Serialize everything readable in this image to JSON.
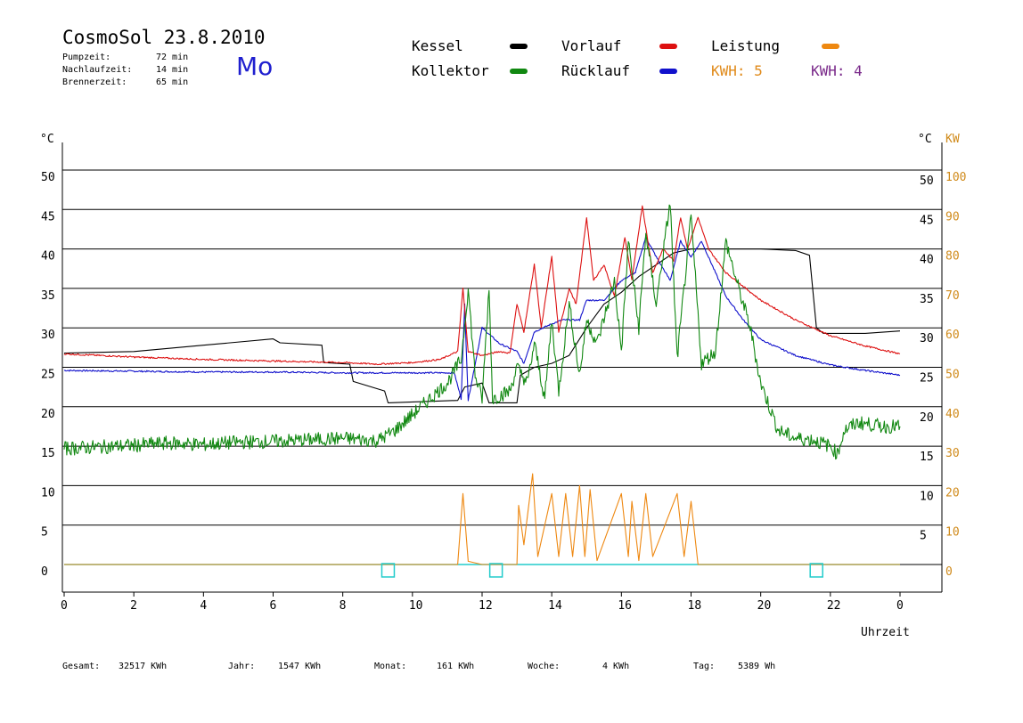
{
  "header": {
    "title": "CosmoSol 23.8.2010",
    "weekday": "Mo",
    "pumpzeit_label": "Pumpzeit:",
    "pumpzeit_value": "72 min",
    "nachlaufzeit_label": "Nachlaufzeit:",
    "nachlaufzeit_value": "14 min",
    "brennerzeit_label": "Brennerzeit:",
    "brennerzeit_value": "65 min"
  },
  "legend": {
    "kessel": "Kessel",
    "kollektor": "Kollektor",
    "vorlauf": "Vorlauf",
    "ruecklauf": "Rücklauf",
    "leistung": "Leistung",
    "kwh1": "KWH: 5",
    "kwh2": "KWH: 4"
  },
  "colors": {
    "kessel": "#000000",
    "kollektor": "#118811",
    "vorlauf": "#dd1111",
    "ruecklauf": "#1111cc",
    "leistung": "#ee8811",
    "kwh2": "#7a2a8a",
    "cyan": "#22cccc",
    "right_axis": "#d08a1a"
  },
  "footer": {
    "gesamt_label": "Gesamt:",
    "gesamt_value": "32517 KWh",
    "jahr_label": "Jahr:",
    "jahr_value": "1547 KWh",
    "monat_label": "Monat:",
    "monat_value": "161 KWh",
    "woche_label": "Woche:",
    "woche_value": "4 KWh",
    "tag_label": "Tag:",
    "tag_value": "5389 Wh"
  },
  "chart_data": {
    "type": "line",
    "xlabel": "Uhrzeit",
    "ylabel_left": "°C",
    "ylabel_right_temp": "°C",
    "ylabel_right_power": "KW",
    "xlim": [
      0,
      24
    ],
    "ylim": [
      -3.5,
      53.5
    ],
    "x_tick_labels": [
      "0",
      "2",
      "4",
      "6",
      "8",
      "10",
      "12",
      "14",
      "16",
      "18",
      "20",
      "22",
      "0"
    ],
    "y_ticks": [
      0,
      5,
      10,
      15,
      20,
      25,
      30,
      35,
      40,
      45,
      50
    ],
    "y_right_power_ticks": [
      0,
      10,
      20,
      30,
      40,
      50,
      60,
      70,
      80,
      90,
      100
    ],
    "grid": true,
    "series": [
      {
        "name": "Kessel",
        "color": "#000000",
        "points": [
          [
            0,
            26.8
          ],
          [
            2,
            27
          ],
          [
            4,
            27.8
          ],
          [
            6,
            28.6
          ],
          [
            6.2,
            28.1
          ],
          [
            7.4,
            27.8
          ],
          [
            7.45,
            25.6
          ],
          [
            8.2,
            25.4
          ],
          [
            8.3,
            23.2
          ],
          [
            9.2,
            22
          ],
          [
            9.3,
            20.5
          ],
          [
            11.3,
            20.8
          ],
          [
            11.5,
            22.5
          ],
          [
            12,
            23
          ],
          [
            12.2,
            20.5
          ],
          [
            13,
            20.5
          ],
          [
            13.1,
            24
          ],
          [
            13.5,
            25
          ],
          [
            14,
            25.5
          ],
          [
            14.5,
            26.5
          ],
          [
            15,
            30
          ],
          [
            15.5,
            33
          ],
          [
            16,
            34.5
          ],
          [
            16.5,
            36.5
          ],
          [
            17,
            38
          ],
          [
            17.5,
            39.5
          ],
          [
            18,
            40
          ],
          [
            19,
            40
          ],
          [
            20,
            40
          ],
          [
            21,
            39.8
          ],
          [
            21.4,
            39.2
          ],
          [
            21.6,
            30
          ],
          [
            21.8,
            29.3
          ],
          [
            23,
            29.3
          ],
          [
            24,
            29.6
          ]
        ]
      },
      {
        "name": "Kollektor",
        "color": "#118811",
        "points": [
          [
            0,
            14.7
          ],
          [
            1,
            14.9
          ],
          [
            2,
            15.1
          ],
          [
            3,
            15.4
          ],
          [
            4,
            15.2
          ],
          [
            5,
            15.5
          ],
          [
            6,
            15.6
          ],
          [
            7,
            15.8
          ],
          [
            8,
            16
          ],
          [
            9,
            15.7
          ],
          [
            9.5,
            17
          ],
          [
            10,
            19
          ],
          [
            10.5,
            21
          ],
          [
            11,
            23
          ],
          [
            11.4,
            26
          ],
          [
            11.6,
            35
          ],
          [
            11.8,
            24
          ],
          [
            12,
            21
          ],
          [
            12.2,
            35
          ],
          [
            12.3,
            21
          ],
          [
            12.8,
            22
          ],
          [
            13,
            25
          ],
          [
            13.3,
            23
          ],
          [
            13.5,
            28
          ],
          [
            13.8,
            21
          ],
          [
            14,
            31
          ],
          [
            14.2,
            22
          ],
          [
            14.5,
            33
          ],
          [
            14.8,
            24
          ],
          [
            15,
            31
          ],
          [
            15.3,
            28
          ],
          [
            15.8,
            36
          ],
          [
            16,
            27
          ],
          [
            16.2,
            41
          ],
          [
            16.5,
            30
          ],
          [
            16.7,
            42
          ],
          [
            17,
            33
          ],
          [
            17.4,
            46
          ],
          [
            17.6,
            26
          ],
          [
            18,
            44
          ],
          [
            18.3,
            25.5
          ],
          [
            18.7,
            27
          ],
          [
            19,
            41
          ],
          [
            19.3,
            36
          ],
          [
            19.7,
            30
          ],
          [
            20,
            23
          ],
          [
            20.5,
            17
          ],
          [
            21,
            16
          ],
          [
            21.5,
            15.8
          ],
          [
            22,
            15
          ],
          [
            22.2,
            14
          ],
          [
            22.4,
            17
          ],
          [
            22.8,
            18
          ],
          [
            23.5,
            17.5
          ],
          [
            24,
            17.5
          ]
        ]
      },
      {
        "name": "Vorlauf",
        "color": "#dd1111",
        "points": [
          [
            0,
            26.7
          ],
          [
            2,
            26.3
          ],
          [
            4,
            26
          ],
          [
            6,
            25.8
          ],
          [
            8,
            25.6
          ],
          [
            9,
            25.4
          ],
          [
            10,
            25.6
          ],
          [
            10.8,
            26
          ],
          [
            11.3,
            27
          ],
          [
            11.45,
            35
          ],
          [
            11.6,
            27
          ],
          [
            12,
            26.5
          ],
          [
            12.5,
            27
          ],
          [
            12.8,
            26.8
          ],
          [
            13,
            33
          ],
          [
            13.2,
            29.5
          ],
          [
            13.5,
            38
          ],
          [
            13.7,
            30
          ],
          [
            14,
            39
          ],
          [
            14.2,
            29.5
          ],
          [
            14.5,
            35
          ],
          [
            14.7,
            33
          ],
          [
            15,
            44
          ],
          [
            15.2,
            36
          ],
          [
            15.5,
            38
          ],
          [
            15.8,
            34
          ],
          [
            16.1,
            41.5
          ],
          [
            16.3,
            36
          ],
          [
            16.6,
            45.5
          ],
          [
            16.9,
            37
          ],
          [
            17.2,
            40
          ],
          [
            17.5,
            38.5
          ],
          [
            17.7,
            44
          ],
          [
            17.9,
            40
          ],
          [
            18.2,
            44
          ],
          [
            18.5,
            40
          ],
          [
            19,
            37
          ],
          [
            20,
            33.5
          ],
          [
            21,
            31
          ],
          [
            22,
            29
          ],
          [
            23,
            27.7
          ],
          [
            24,
            26.7
          ]
        ]
      },
      {
        "name": "Rücklauf",
        "color": "#1111cc",
        "points": [
          [
            0,
            24.6
          ],
          [
            2,
            24.5
          ],
          [
            4,
            24.4
          ],
          [
            6,
            24.4
          ],
          [
            8,
            24.3
          ],
          [
            9,
            24.3
          ],
          [
            10,
            24.3
          ],
          [
            11.2,
            24.3
          ],
          [
            11.4,
            21
          ],
          [
            11.5,
            33
          ],
          [
            11.6,
            20.8
          ],
          [
            12,
            30
          ],
          [
            12.5,
            28
          ],
          [
            13,
            27
          ],
          [
            13.2,
            25.5
          ],
          [
            13.5,
            29.5
          ],
          [
            14,
            30.5
          ],
          [
            14.3,
            31
          ],
          [
            14.8,
            31
          ],
          [
            15,
            33.5
          ],
          [
            15.5,
            33.5
          ],
          [
            16,
            36
          ],
          [
            16.4,
            37
          ],
          [
            16.7,
            41.5
          ],
          [
            17,
            39
          ],
          [
            17.4,
            36
          ],
          [
            17.7,
            41
          ],
          [
            18,
            39
          ],
          [
            18.3,
            41
          ],
          [
            19,
            34
          ],
          [
            19.5,
            31
          ],
          [
            20,
            28.5
          ],
          [
            21,
            26.5
          ],
          [
            22,
            25.3
          ],
          [
            23,
            24.6
          ],
          [
            24,
            24
          ]
        ]
      },
      {
        "name": "Leistung",
        "color": "#ee8811",
        "unit": "KW",
        "points": [
          [
            0,
            0
          ],
          [
            11.3,
            0
          ],
          [
            11.45,
            9
          ],
          [
            11.6,
            0.4
          ],
          [
            12,
            0
          ],
          [
            13,
            0
          ],
          [
            13.05,
            7.5
          ],
          [
            13.2,
            2.5
          ],
          [
            13.45,
            11.5
          ],
          [
            13.6,
            1
          ],
          [
            14,
            9
          ],
          [
            14.2,
            1
          ],
          [
            14.4,
            9
          ],
          [
            14.6,
            1
          ],
          [
            14.8,
            10
          ],
          [
            14.95,
            1
          ],
          [
            15.1,
            9.5
          ],
          [
            15.3,
            0.5
          ],
          [
            16,
            9
          ],
          [
            16.2,
            1
          ],
          [
            16.3,
            8
          ],
          [
            16.5,
            0.5
          ],
          [
            16.7,
            9
          ],
          [
            16.9,
            1
          ],
          [
            17.6,
            9
          ],
          [
            17.8,
            1
          ],
          [
            18,
            8
          ],
          [
            18.2,
            0
          ],
          [
            24,
            0
          ]
        ]
      },
      {
        "name": "cyan",
        "color": "#22cccc",
        "points": [
          [
            0,
            0
          ],
          [
            24,
            0
          ]
        ]
      }
    ],
    "markers": [
      {
        "x": 9.3,
        "y": -0.9
      },
      {
        "x": 12.4,
        "y": -0.9
      },
      {
        "x": 21.6,
        "y": -0.9
      }
    ]
  }
}
